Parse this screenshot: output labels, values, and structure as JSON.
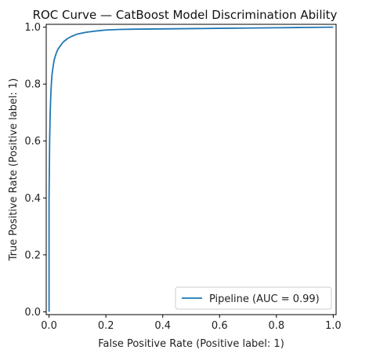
{
  "chart_data": {
    "type": "line",
    "title": "ROC Curve — CatBoost Model Discrimination Ability",
    "xlabel": "False Positive Rate (Positive label: 1)",
    "ylabel": "True Positive Rate (Positive label: 1)",
    "xlim": [
      -0.01,
      1.01
    ],
    "ylim": [
      -0.01,
      1.01
    ],
    "xticks": [
      "0.0",
      "0.2",
      "0.4",
      "0.6",
      "0.8",
      "1.0"
    ],
    "yticks": [
      "0.0",
      "0.2",
      "0.4",
      "0.6",
      "0.8",
      "1.0"
    ],
    "grid": false,
    "legend_position": "lower-right",
    "series": [
      {
        "name": "Pipeline (AUC = 0.99)",
        "color": "#1f77b4",
        "x": [
          0.0,
          0.0,
          0.002,
          0.004,
          0.006,
          0.008,
          0.01,
          0.014,
          0.018,
          0.024,
          0.03,
          0.04,
          0.05,
          0.065,
          0.08,
          0.1,
          0.13,
          0.16,
          0.2,
          0.25,
          0.3,
          0.4,
          0.5,
          0.6,
          0.7,
          0.8,
          0.9,
          1.0
        ],
        "y": [
          0.0,
          0.4,
          0.6,
          0.7,
          0.76,
          0.8,
          0.83,
          0.86,
          0.885,
          0.905,
          0.92,
          0.935,
          0.948,
          0.96,
          0.968,
          0.976,
          0.982,
          0.986,
          0.99,
          0.992,
          0.993,
          0.994,
          0.995,
          0.996,
          0.997,
          0.998,
          0.999,
          1.0
        ]
      }
    ]
  }
}
